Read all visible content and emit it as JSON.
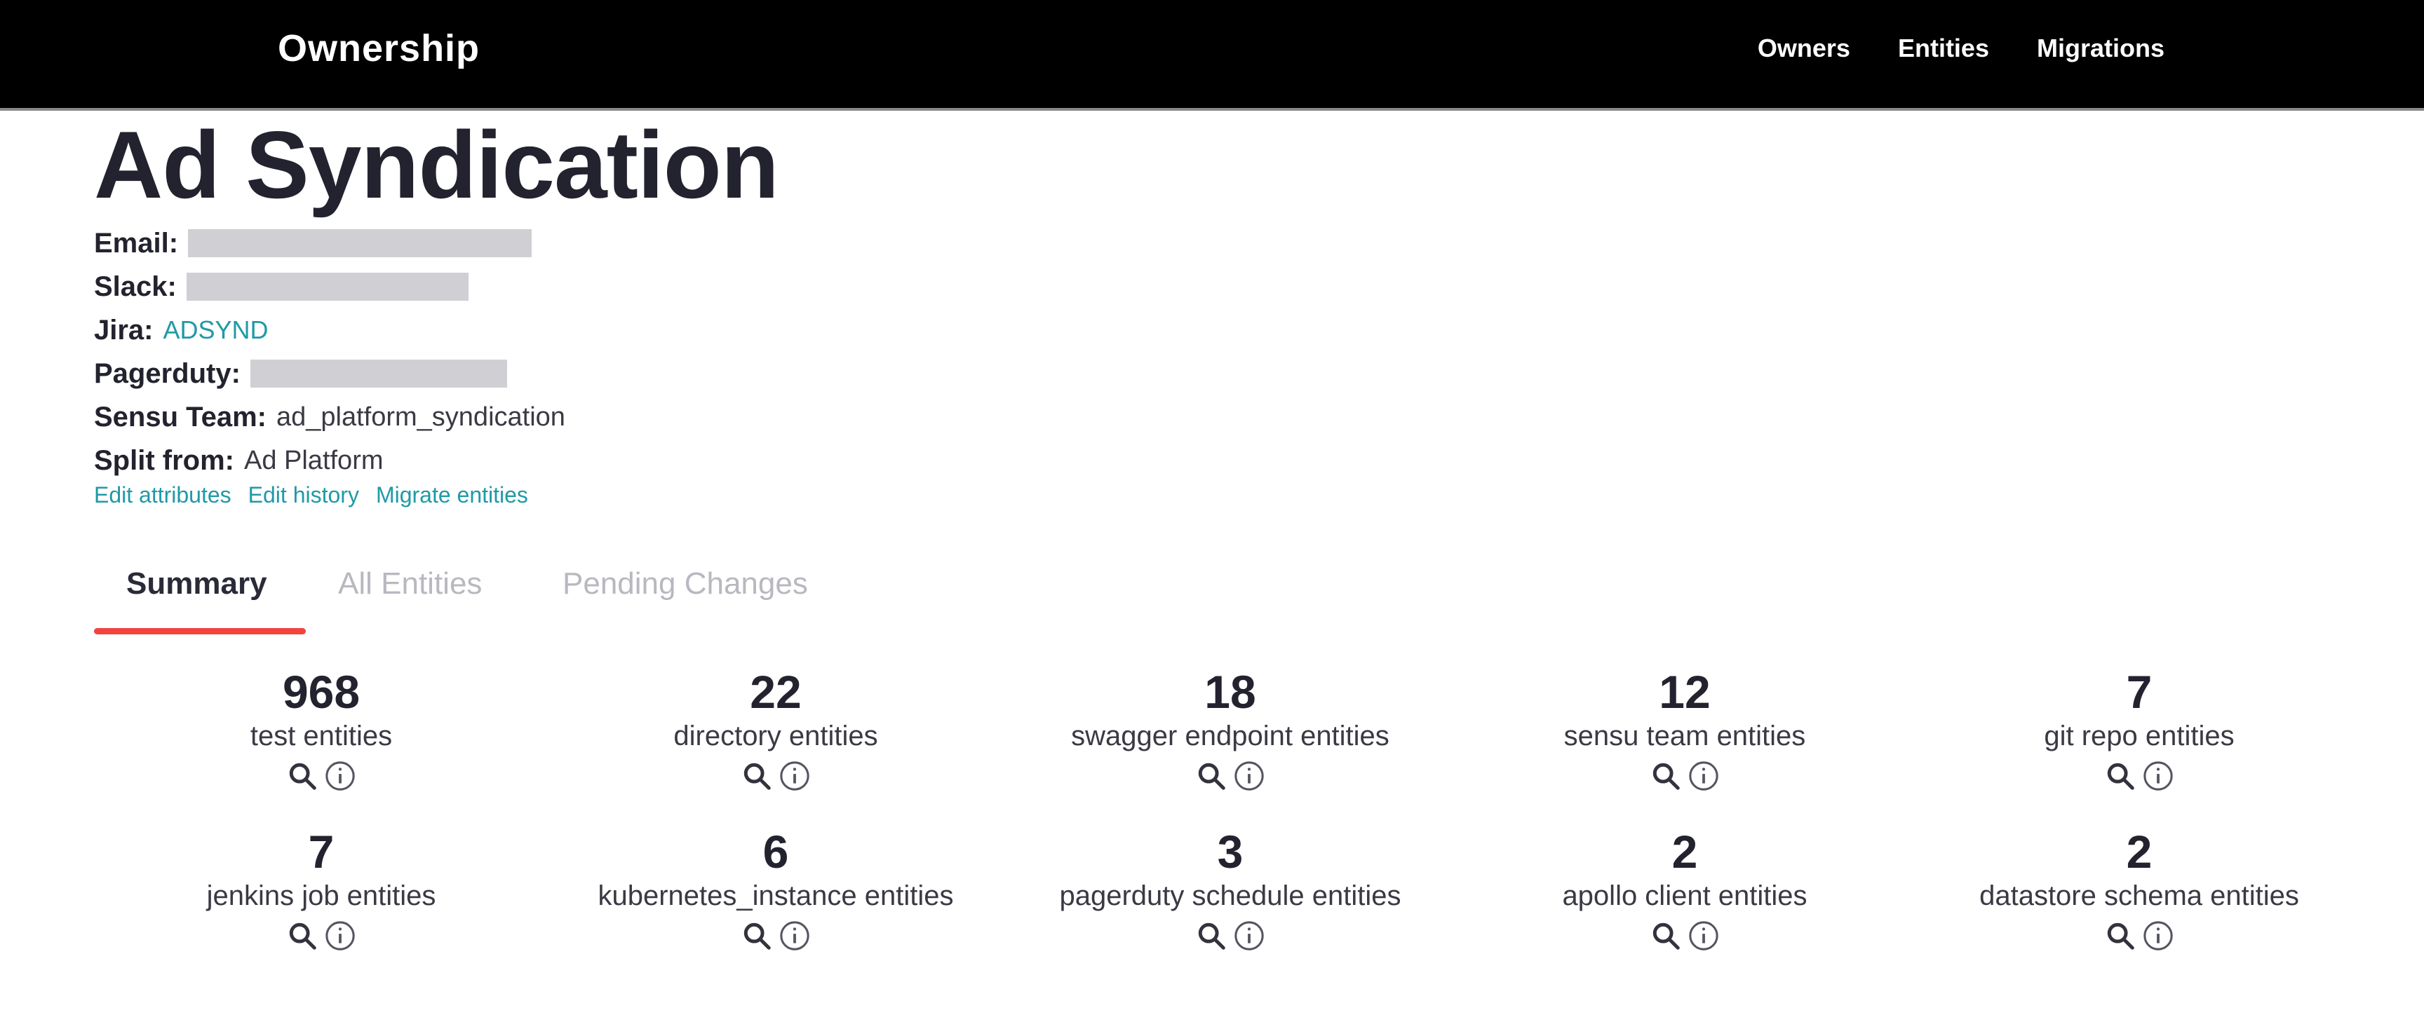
{
  "nav": {
    "brand": "Ownership",
    "links": [
      "Owners",
      "Entities",
      "Migrations"
    ]
  },
  "owner": {
    "title": "Ad Syndication",
    "attributes": {
      "email_label": "Email:",
      "slack_label": "Slack:",
      "jira_label": "Jira:",
      "jira_value": "ADSYND",
      "pagerduty_label": "Pagerduty:",
      "sensu_label": "Sensu Team:",
      "sensu_value": "ad_platform_syndication",
      "split_label": "Split from:",
      "split_value": "Ad Platform"
    },
    "actions": [
      "Edit attributes",
      "Edit history",
      "Migrate entities"
    ]
  },
  "tabs": {
    "items": [
      "Summary",
      "All Entities",
      "Pending Changes"
    ],
    "active": "Summary"
  },
  "stats": [
    {
      "count": "968",
      "label": "test entities"
    },
    {
      "count": "22",
      "label": "directory entities"
    },
    {
      "count": "18",
      "label": "swagger endpoint entities"
    },
    {
      "count": "12",
      "label": "sensu team entities"
    },
    {
      "count": "7",
      "label": "git repo entities"
    },
    {
      "count": "7",
      "label": "jenkins job entities"
    },
    {
      "count": "6",
      "label": "kubernetes_instance entities"
    },
    {
      "count": "3",
      "label": "pagerduty schedule entities"
    },
    {
      "count": "2",
      "label": "apollo client entities"
    },
    {
      "count": "2",
      "label": "datastore schema entities"
    }
  ],
  "icons": {
    "search": "search-icon",
    "info": "info-icon"
  },
  "colors": {
    "topbar": "#000000",
    "link": "#1f9aa6",
    "active_tab_underline": "#f2433f",
    "inactive_tab": "#b8b8c0",
    "redacted": "#cfcfd4"
  }
}
